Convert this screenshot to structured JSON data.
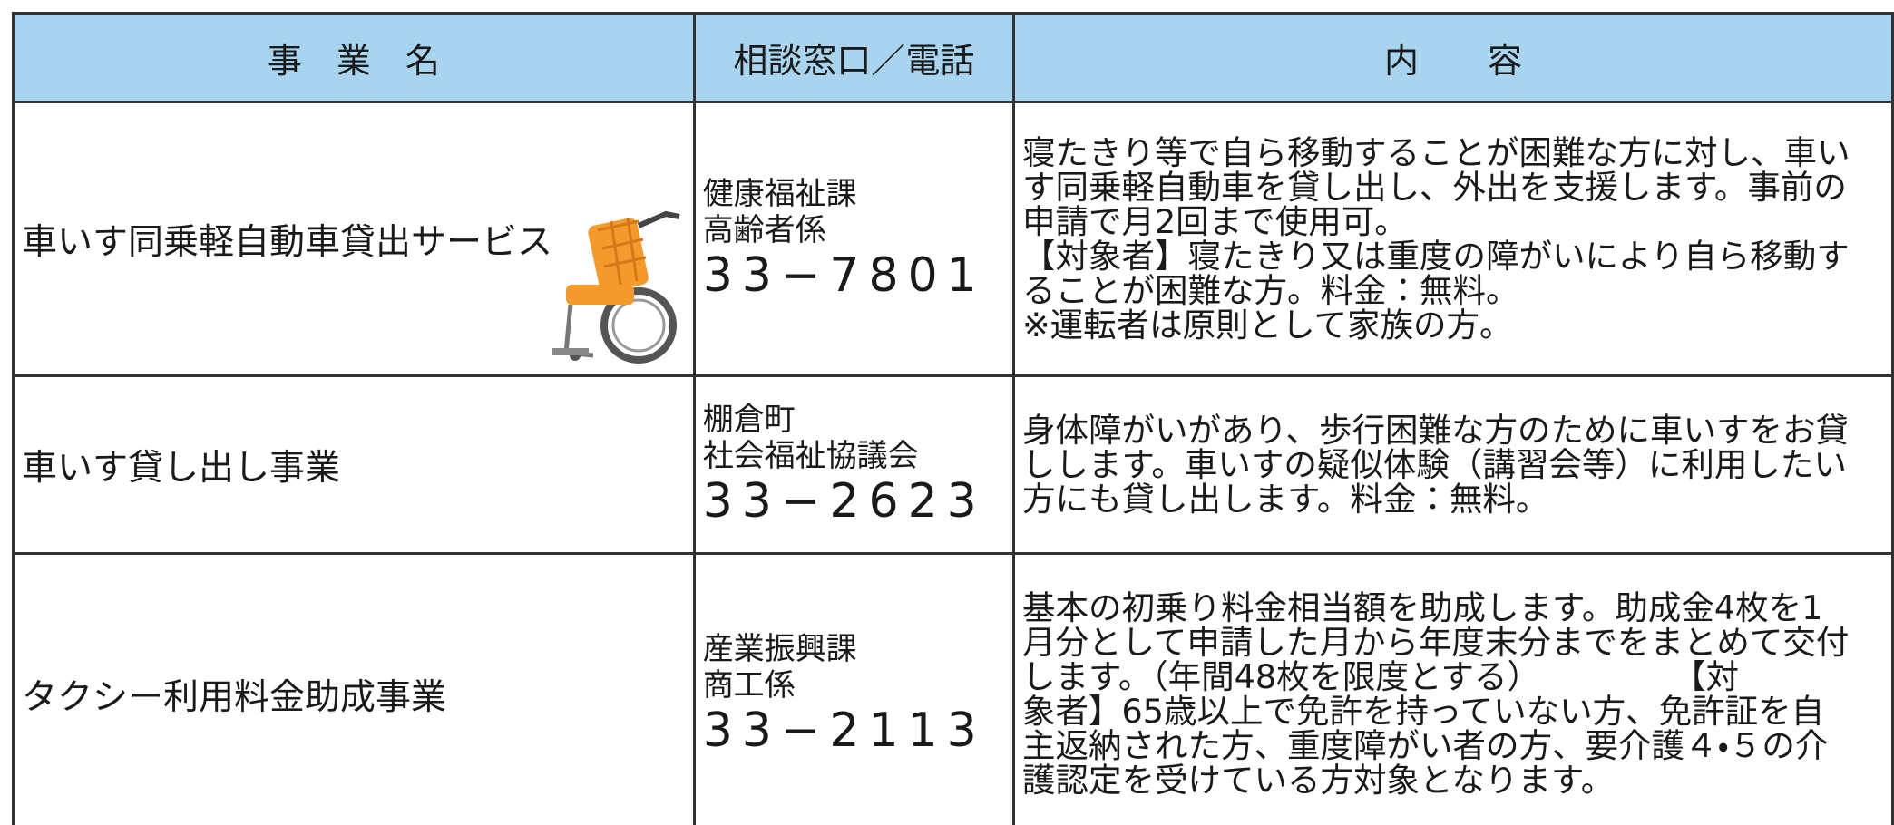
{
  "table": {
    "header": [
      "事　業　名",
      "相談窓口／電話",
      "内　　容"
    ],
    "rows": [
      {
        "name": "車いす同乗軽自動車貸出サービス",
        "contact": [
          "健康福祉課",
          "高齢者係"
        ],
        "phone": "33−7801",
        "content": [
          "寝たきり等で自ら移動することが困難な方に対し、車い",
          "す同乗軽自動車を貸し出し、外出を支援します。事前の",
          "申請で月2回まで使用可。",
          "【対象者】寝たきり又は重度の障がいにより自ら移動す",
          "ることが困難な方。料金：無料。",
          "※運転者は原則として家族の方。"
        ]
      },
      {
        "name": "車いす貸し出し事業",
        "contact": [
          "棚倉町",
          "社会福祉協議会"
        ],
        "phone": "33−2623",
        "content": [
          "身体障がいがあり、歩行困難な方のために車いすをお貸",
          "しします。車いすの疑似体験（講習会等）に利用したい",
          "方にも貸し出します。料金：無料。"
        ]
      },
      {
        "name": "タクシー利用料金助成事業",
        "contact": [
          "産業振興課",
          "商工係"
        ],
        "phone": "33−2113",
        "content": [
          "基本の初乗り料金相当額を助成します。助成金4枚を1",
          "月分として申請した月から年度末分までをまとめて交付",
          "します。（年間48枚を限度とする）　　　　　【対",
          "象者】65歳以上で免許を持っていない方、免許証を自",
          "主返納された方、重度障がい者の方、要介護４・５の介",
          "護認定を受けている方対象となります。"
        ]
      }
    ]
  }
}
